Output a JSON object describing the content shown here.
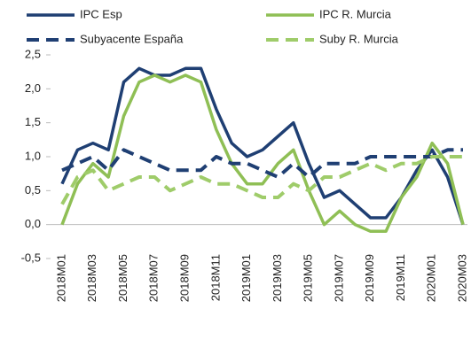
{
  "chart_data": {
    "type": "line",
    "categories": [
      "2018M01",
      null,
      "2018M03",
      null,
      "2018M05",
      null,
      "2018M07",
      null,
      "2018M09",
      null,
      "2018M11",
      null,
      "2019M01",
      null,
      "2019M03",
      null,
      "2019M05",
      null,
      "2019M07",
      null,
      "2019M09",
      null,
      "2019M11",
      null,
      "2020M01",
      null,
      "2020M03"
    ],
    "series": [
      {
        "name": "IPC Esp",
        "color": "#1f3f73",
        "dash": false,
        "values": [
          0.6,
          1.1,
          1.2,
          1.1,
          2.1,
          2.3,
          2.2,
          2.2,
          2.3,
          2.3,
          1.7,
          1.2,
          1.0,
          1.1,
          1.3,
          1.5,
          0.9,
          0.4,
          0.5,
          0.3,
          0.1,
          0.1,
          0.4,
          0.8,
          1.1,
          0.7,
          0.0
        ]
      },
      {
        "name": "IPC R. Murcia",
        "color": "#8fbf55",
        "dash": false,
        "values": [
          0.0,
          0.6,
          0.9,
          0.7,
          1.6,
          2.1,
          2.2,
          2.1,
          2.2,
          2.1,
          1.4,
          0.9,
          0.6,
          0.6,
          0.9,
          1.1,
          0.5,
          0.0,
          0.2,
          0.0,
          -0.1,
          -0.1,
          0.4,
          0.7,
          1.2,
          0.9,
          0.0
        ]
      },
      {
        "name": "Subyacente España",
        "color": "#1f3f73",
        "dash": true,
        "values": [
          0.8,
          0.9,
          1.0,
          0.8,
          1.1,
          1.0,
          0.9,
          0.8,
          0.8,
          0.8,
          1.0,
          0.9,
          0.9,
          0.8,
          0.7,
          0.9,
          0.7,
          0.9,
          0.9,
          0.9,
          1.0,
          1.0,
          1.0,
          1.0,
          1.0,
          1.1,
          1.1
        ]
      },
      {
        "name": "Suby R. Murcia",
        "color": "#9fcc6a",
        "dash": true,
        "values": [
          0.3,
          0.7,
          0.8,
          0.5,
          0.6,
          0.7,
          0.7,
          0.5,
          0.6,
          0.7,
          0.6,
          0.6,
          0.5,
          0.4,
          0.4,
          0.6,
          0.5,
          0.7,
          0.7,
          0.8,
          0.9,
          0.8,
          0.9,
          0.9,
          1.0,
          1.0,
          1.0
        ]
      }
    ],
    "ylim": [
      -0.5,
      2.5
    ],
    "yticks": [
      {
        "value": 2.5,
        "label": "2,5"
      },
      {
        "value": 2.0,
        "label": "2,0"
      },
      {
        "value": 1.5,
        "label": "1,5"
      },
      {
        "value": 1.0,
        "label": "1,0"
      },
      {
        "value": 0.5,
        "label": "0,5"
      },
      {
        "value": 0,
        "label": "0,0"
      },
      {
        "value": -0.5,
        "label": "-0,5"
      }
    ]
  }
}
